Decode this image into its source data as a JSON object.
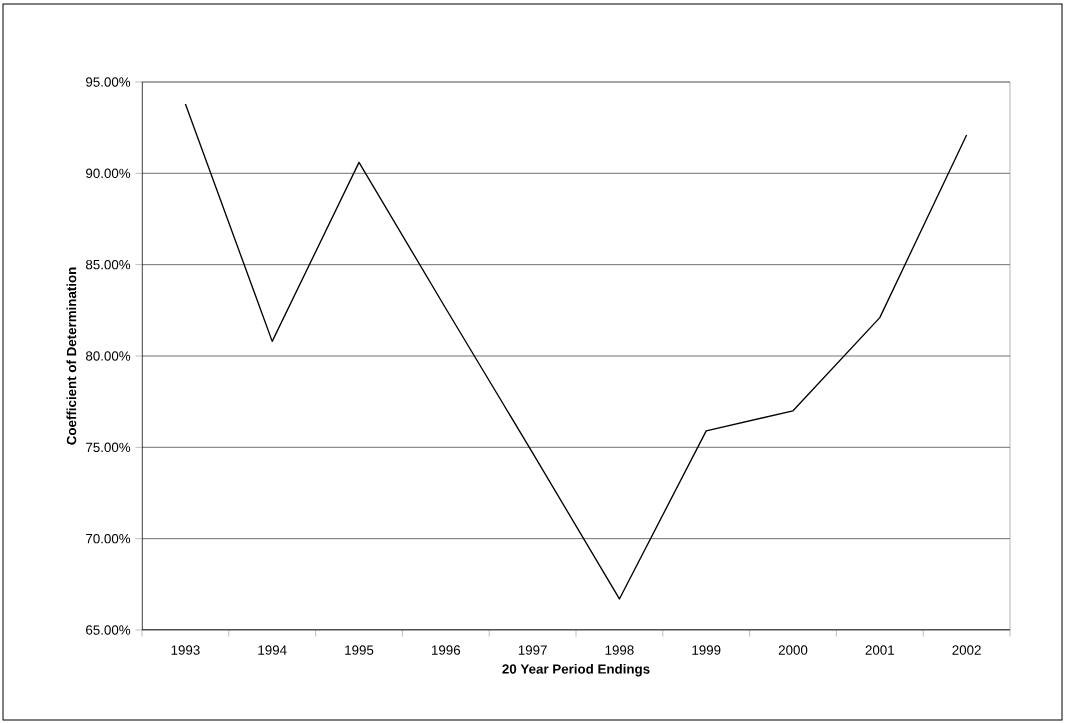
{
  "chart_data": {
    "type": "line",
    "xlabel": "20 Year Period Endings",
    "ylabel": "Coefficient of Determination",
    "categories": [
      "1993",
      "1994",
      "1995",
      "1996",
      "1997",
      "1998",
      "1999",
      "2000",
      "2001",
      "2002"
    ],
    "values": [
      93.8,
      80.8,
      90.6,
      82.6,
      74.7,
      66.7,
      75.9,
      77.0,
      82.1,
      92.1
    ],
    "color": "#000000",
    "ylim": [
      65,
      95
    ],
    "yticks": [
      {
        "value": 65,
        "label": "65.00%"
      },
      {
        "value": 70,
        "label": "70.00%"
      },
      {
        "value": 75,
        "label": "75.00%"
      },
      {
        "value": 80,
        "label": "80.00%"
      },
      {
        "value": 85,
        "label": "85.00%"
      },
      {
        "value": 90,
        "label": "90.00%"
      },
      {
        "value": 95,
        "label": "95.00%"
      }
    ],
    "grid": "y"
  }
}
